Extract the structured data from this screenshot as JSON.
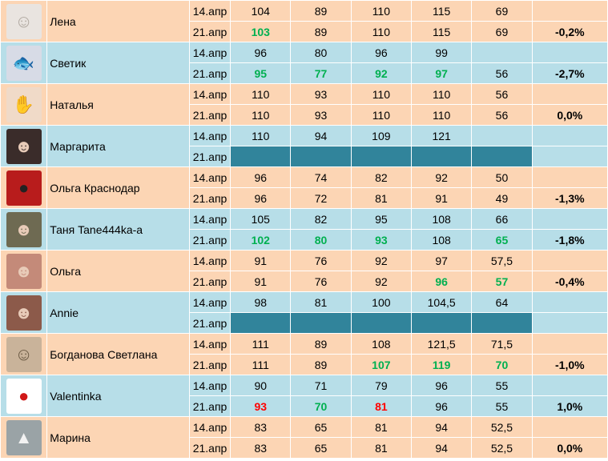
{
  "rows": [
    {
      "name": "Лена",
      "icon": "baby-avatar-icon",
      "theme": "orange",
      "avatarBg": "#e9e4e0",
      "r1": {
        "date": "14.апр",
        "v": [
          "104",
          "89",
          "110",
          "115",
          "69"
        ],
        "c": [
          "",
          "",
          "",
          "",
          ""
        ],
        "pct": ""
      },
      "r2": {
        "date": "21.апр",
        "v": [
          "103",
          "89",
          "110",
          "115",
          "69"
        ],
        "c": [
          "green",
          "",
          "",
          "",
          ""
        ],
        "pct": "-0,2%"
      }
    },
    {
      "name": "Светик",
      "icon": "fish-avatar-icon",
      "theme": "blue",
      "avatarBg": "#d7dbe6",
      "r1": {
        "date": "14.апр",
        "v": [
          "96",
          "80",
          "96",
          "99",
          ""
        ],
        "c": [
          "",
          "",
          "",
          "",
          ""
        ],
        "pct": ""
      },
      "r2": {
        "date": "21.апр",
        "v": [
          "95",
          "77",
          "92",
          "97",
          "56"
        ],
        "c": [
          "green",
          "green",
          "green",
          "green",
          ""
        ],
        "pct": "-2,7%"
      }
    },
    {
      "name": "Наталья",
      "icon": "hand-avatar-icon",
      "theme": "orange",
      "avatarBg": "#f0dac8",
      "r1": {
        "date": "14.апр",
        "v": [
          "110",
          "93",
          "110",
          "110",
          "56"
        ],
        "c": [
          "",
          "",
          "",
          "",
          ""
        ],
        "pct": ""
      },
      "r2": {
        "date": "21.апр",
        "v": [
          "110",
          "93",
          "110",
          "110",
          "56"
        ],
        "c": [
          "",
          "",
          "",
          "",
          ""
        ],
        "pct": "0,0%"
      }
    },
    {
      "name": "Маргарита",
      "icon": "woman-avatar-icon",
      "theme": "blue",
      "avatarBg": "#3a2c2a",
      "empty2": true,
      "r1": {
        "date": "14.апр",
        "v": [
          "110",
          "94",
          "109",
          "121",
          ""
        ],
        "c": [
          "",
          "",
          "",
          "",
          ""
        ],
        "pct": ""
      },
      "r2": {
        "date": "21.апр",
        "v": [
          "",
          "",
          "",
          "",
          ""
        ],
        "c": [
          "",
          "",
          "",
          "",
          ""
        ],
        "pct": ""
      }
    },
    {
      "name": "Ольга Краснодар",
      "icon": "ladybug-avatar-icon",
      "theme": "orange",
      "avatarBg": "#b81c1c",
      "r1": {
        "date": "14.апр",
        "v": [
          "96",
          "74",
          "82",
          "92",
          "50"
        ],
        "c": [
          "",
          "",
          "",
          "",
          ""
        ],
        "pct": ""
      },
      "r2": {
        "date": "21.апр",
        "v": [
          "96",
          "72",
          "81",
          "91",
          "49"
        ],
        "c": [
          "",
          "",
          "",
          "",
          ""
        ],
        "pct": "-1,3%"
      }
    },
    {
      "name": "Таня Tane444ka-a",
      "icon": "woman-avatar-icon",
      "theme": "blue",
      "avatarBg": "#6e6a52",
      "r1": {
        "date": "14.апр",
        "v": [
          "105",
          "82",
          "95",
          "108",
          "66"
        ],
        "c": [
          "",
          "",
          "",
          "",
          ""
        ],
        "pct": ""
      },
      "r2": {
        "date": "21.апр",
        "v": [
          "102",
          "80",
          "93",
          "108",
          "65"
        ],
        "c": [
          "green",
          "green",
          "green",
          "",
          "green"
        ],
        "pct": "-1,8%"
      }
    },
    {
      "name": "Ольга",
      "icon": "woman-avatar-icon",
      "theme": "orange",
      "avatarBg": "#c48a79",
      "r1": {
        "date": "14.апр",
        "v": [
          "91",
          "76",
          "92",
          "97",
          "57,5"
        ],
        "c": [
          "",
          "",
          "",
          "",
          ""
        ],
        "pct": ""
      },
      "r2": {
        "date": "21.апр",
        "v": [
          "91",
          "76",
          "92",
          "96",
          "57"
        ],
        "c": [
          "",
          "",
          "",
          "green",
          "green"
        ],
        "pct": "-0,4%"
      }
    },
    {
      "name": "Annie",
      "icon": "woman-avatar-icon",
      "theme": "blue",
      "avatarBg": "#8c5a4a",
      "empty2": true,
      "r1": {
        "date": "14.апр",
        "v": [
          "98",
          "81",
          "100",
          "104,5",
          "64"
        ],
        "c": [
          "",
          "",
          "",
          "",
          ""
        ],
        "pct": ""
      },
      "r2": {
        "date": "21.апр",
        "v": [
          "",
          "",
          "",
          "",
          ""
        ],
        "c": [
          "",
          "",
          "",
          "",
          ""
        ],
        "pct": ""
      }
    },
    {
      "name": "Богданова Светлана",
      "icon": "couple-avatar-icon",
      "theme": "orange",
      "avatarBg": "#c9b39a",
      "r1": {
        "date": "14.апр",
        "v": [
          "111",
          "89",
          "108",
          "121,5",
          "71,5"
        ],
        "c": [
          "",
          "",
          "",
          "",
          ""
        ],
        "pct": ""
      },
      "r2": {
        "date": "21.апр",
        "v": [
          "111",
          "89",
          "107",
          "119",
          "70"
        ],
        "c": [
          "",
          "",
          "green",
          "green",
          "green"
        ],
        "pct": "-1,0%"
      }
    },
    {
      "name": "Valentinka",
      "icon": "apple-avatar-icon",
      "theme": "blue",
      "avatarBg": "#ffffff",
      "r1": {
        "date": "14.апр",
        "v": [
          "90",
          "71",
          "79",
          "96",
          "55"
        ],
        "c": [
          "",
          "",
          "",
          "",
          ""
        ],
        "pct": ""
      },
      "r2": {
        "date": "21.апр",
        "v": [
          "93",
          "70",
          "81",
          "96",
          "55"
        ],
        "c": [
          "red",
          "green",
          "red",
          "",
          ""
        ],
        "pct": "1,0%"
      }
    },
    {
      "name": "Марина",
      "icon": "bird-avatar-icon",
      "theme": "orange",
      "avatarBg": "#9aa3a6",
      "r1": {
        "date": "14.апр",
        "v": [
          "83",
          "65",
          "81",
          "94",
          "52,5"
        ],
        "c": [
          "",
          "",
          "",
          "",
          ""
        ],
        "pct": ""
      },
      "r2": {
        "date": "21.апр",
        "v": [
          "83",
          "65",
          "81",
          "94",
          "52,5"
        ],
        "c": [
          "",
          "",
          "",
          "",
          ""
        ],
        "pct": "0,0%"
      }
    }
  ]
}
